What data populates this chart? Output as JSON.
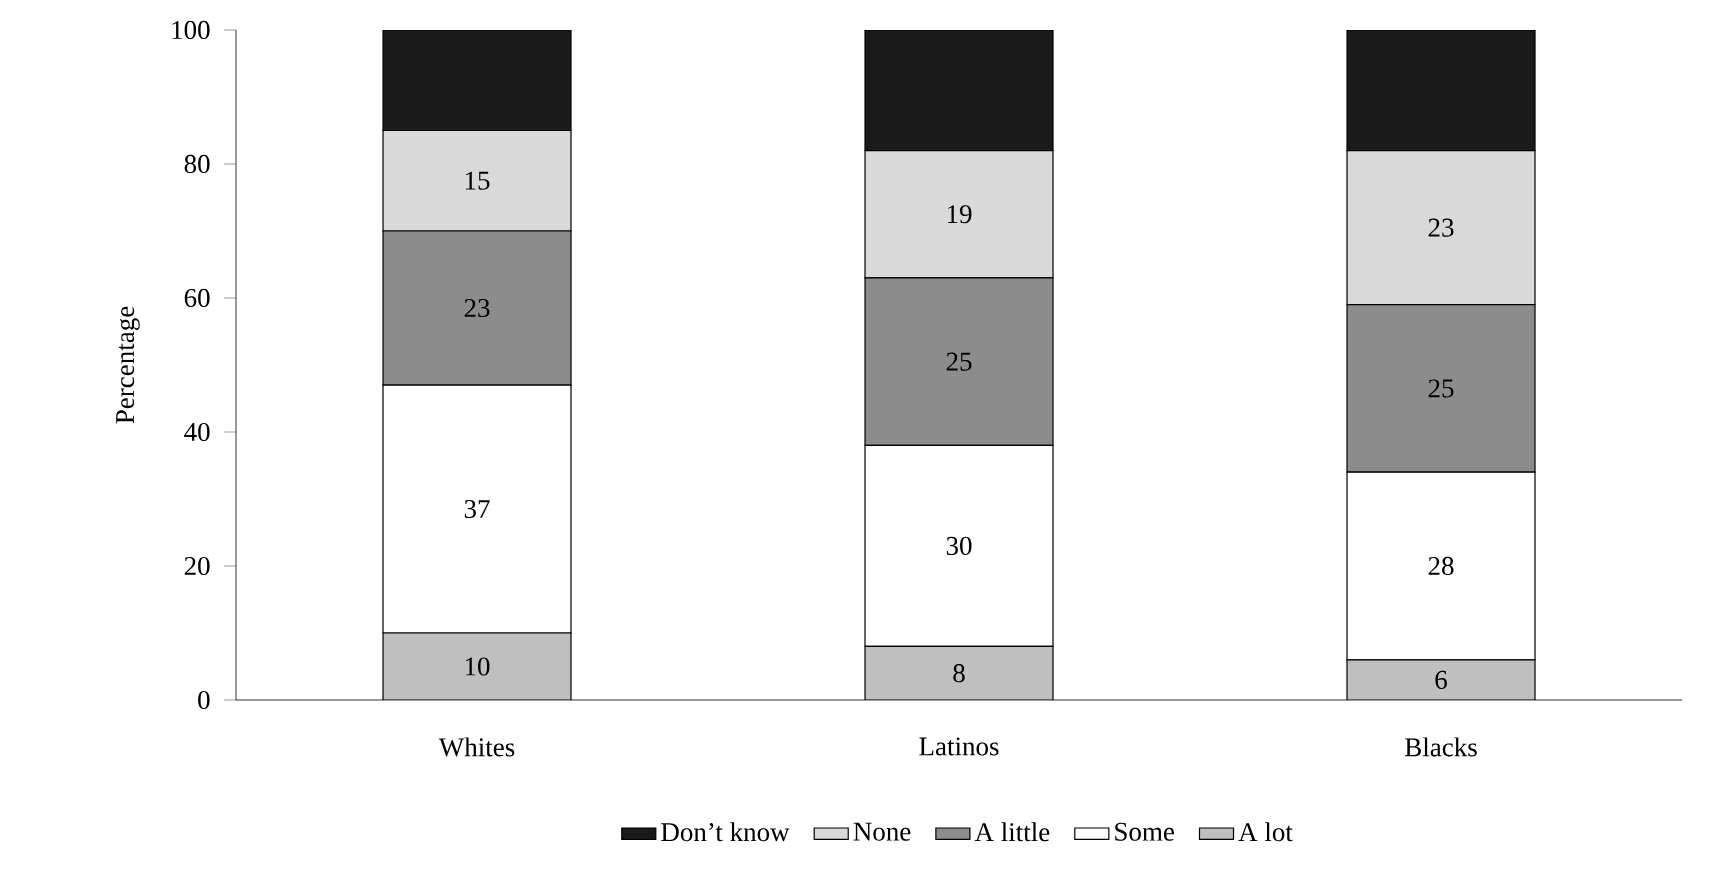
{
  "chart_data": {
    "type": "bar",
    "stacked": true,
    "ylabel": "Percentage",
    "categories": [
      "Whites",
      "Latinos",
      "Blacks"
    ],
    "series": [
      {
        "name": "A lot",
        "color": "#bfbfbf",
        "values": [
          10,
          8,
          6
        ],
        "value_labels": [
          "10",
          "8",
          "6"
        ]
      },
      {
        "name": "Some",
        "color": "#ffffff",
        "values": [
          37,
          30,
          28
        ],
        "value_labels": [
          "37",
          "30",
          "28"
        ]
      },
      {
        "name": "A little",
        "color": "#8c8c8c",
        "values": [
          23,
          25,
          25
        ],
        "value_labels": [
          "23",
          "25",
          "25"
        ]
      },
      {
        "name": "None",
        "color": "#d9d9d9",
        "values": [
          15,
          19,
          23
        ],
        "value_labels": [
          "15",
          "19",
          "23"
        ]
      },
      {
        "name": "Don’t know",
        "color": "#1a1a1a",
        "values": [
          15,
          18,
          18
        ],
        "value_labels": [
          null,
          null,
          null
        ]
      }
    ],
    "ylim": [
      0,
      100
    ],
    "yticks": [
      0,
      20,
      40,
      60,
      80,
      100
    ],
    "grid": false,
    "legend": "bottom"
  }
}
